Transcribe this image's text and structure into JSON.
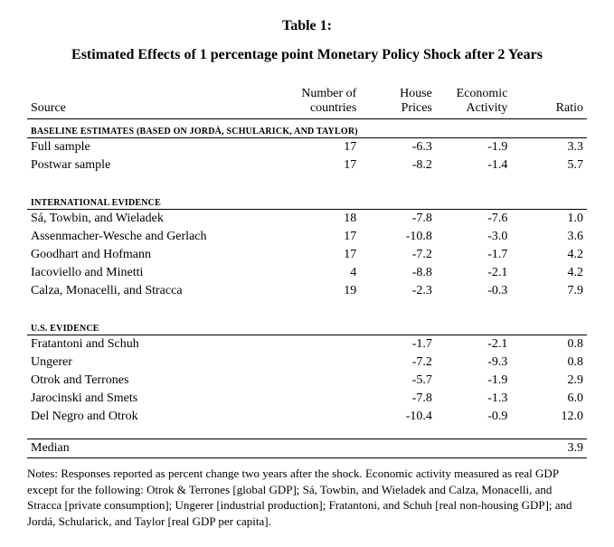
{
  "title": {
    "label": "Table 1:",
    "text": "Estimated Effects of 1 percentage point Monetary Policy Shock after 2 Years"
  },
  "columns": {
    "source": "Source",
    "ncountries_l1": "Number of",
    "ncountries_l2": "countries",
    "house_l1": "House",
    "house_l2": "Prices",
    "econ_l1": "Economic",
    "econ_l2": "Activity",
    "ratio": "Ratio"
  },
  "sections": [
    {
      "header": "BASELINE ESTIMATES (BASED ON JORDÀ, SCHULARICK, AND TAYLOR)",
      "rows": [
        {
          "source": "Full sample",
          "n": "17",
          "house": "-6.3",
          "econ": "-1.9",
          "ratio": "3.3"
        },
        {
          "source": "Postwar sample",
          "n": "17",
          "house": "-8.2",
          "econ": "-1.4",
          "ratio": "5.7"
        }
      ]
    },
    {
      "header": "INTERNATIONAL EVIDENCE",
      "rows": [
        {
          "source": "Sá, Towbin, and Wieladek",
          "n": "18",
          "house": "-7.8",
          "econ": "-7.6",
          "ratio": "1.0"
        },
        {
          "source": "Assenmacher-Wesche and Gerlach",
          "n": "17",
          "house": "-10.8",
          "econ": "-3.0",
          "ratio": "3.6"
        },
        {
          "source": "Goodhart and Hofmann",
          "n": "17",
          "house": "-7.2",
          "econ": "-1.7",
          "ratio": "4.2"
        },
        {
          "source": "Iacoviello and Minetti",
          "n": "4",
          "house": "-8.8",
          "econ": "-2.1",
          "ratio": "4.2"
        },
        {
          "source": "Calza, Monacelli, and Stracca",
          "n": "19",
          "house": "-2.3",
          "econ": "-0.3",
          "ratio": "7.9"
        }
      ]
    },
    {
      "header": "U.S. EVIDENCE",
      "rows": [
        {
          "source": "Fratantoni and Schuh",
          "n": "",
          "house": "-1.7",
          "econ": "-2.1",
          "ratio": "0.8"
        },
        {
          "source": "Ungerer",
          "n": "",
          "house": "-7.2",
          "econ": "-9.3",
          "ratio": "0.8"
        },
        {
          "source": "Otrok and Terrones",
          "n": "",
          "house": "-5.7",
          "econ": "-1.9",
          "ratio": "2.9"
        },
        {
          "source": "Jarocinski and Smets",
          "n": "",
          "house": "-7.8",
          "econ": "-1.3",
          "ratio": "6.0"
        },
        {
          "source": "Del Negro and Otrok",
          "n": "",
          "house": "-10.4",
          "econ": "-0.9",
          "ratio": "12.0"
        }
      ]
    }
  ],
  "median": {
    "label": "Median",
    "ratio": "3.9"
  },
  "notes": "Notes: Responses reported as percent change two years after the shock. Economic activity measured as real GDP except for the following: Otrok & Terrones [global GDP]; Sá, Towbin, and Wieladek and Calza, Monacelli, and Stracca [private consumption]; Ungerer [industrial production]; Fratantoni, and Schuh [real non-housing GDP]; and Jordá, Schularick, and Taylor [real GDP per capita]."
}
